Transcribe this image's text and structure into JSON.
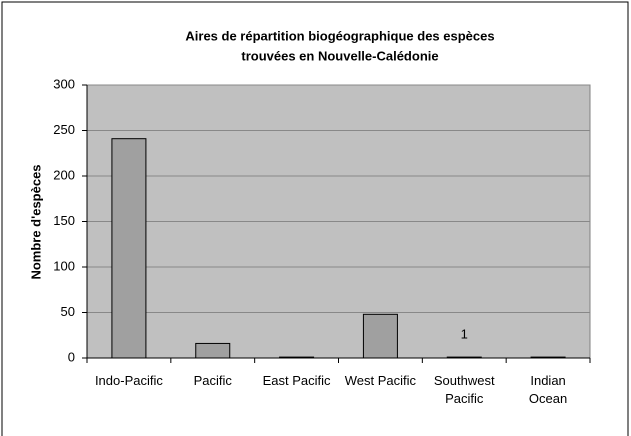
{
  "chart_data": {
    "type": "bar",
    "title": [
      "Aires de répartition biogéographique des espèces",
      "trouvées en Nouvelle-Calédonie"
    ],
    "y_label": "Nombre d'espèces",
    "categories": [
      "Indo-Pacific",
      "Pacific",
      "East Pacific",
      "West Pacific",
      "Southwest Pacific",
      "Indian Ocean"
    ],
    "values": [
      241,
      16,
      1,
      48,
      1,
      1
    ],
    "value_labels": [
      null,
      null,
      null,
      null,
      "1",
      null
    ],
    "color": "#a0a0a0",
    "ylim": [
      0,
      300
    ],
    "yticks": [
      0,
      50,
      100,
      150,
      200,
      250,
      300
    ],
    "grid": true
  }
}
